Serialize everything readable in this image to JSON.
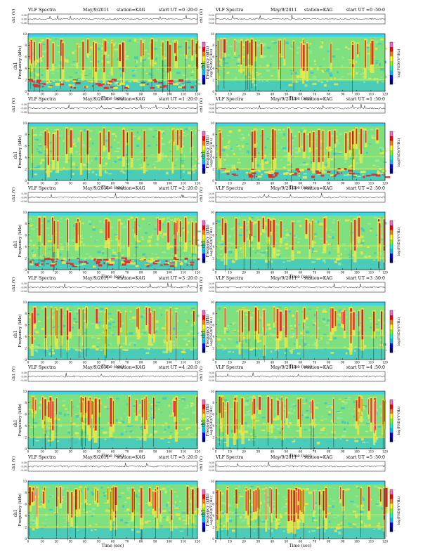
{
  "header": {
    "title": "VLF Spectra",
    "date": "May/9/2011",
    "station": "station=KAG"
  },
  "labels": {
    "x_axis": "Time (sec)",
    "y_axis_line1": "ch1",
    "y_axis_line2": "Frequency (kHz)",
    "amp_axis": "ch1 (V)",
    "colorbar": "log(PSD)(V²/Hz)"
  },
  "colors": {
    "background_spectrum": "#7fe07f",
    "low_band": "#3dc7c7",
    "high_band": "#e8e84a",
    "intense": "#e03030",
    "top_band": "#40d8e8"
  },
  "colorbar": {
    "colors": [
      "#000080",
      "#0000ff",
      "#00bfff",
      "#00ffbf",
      "#7fff00",
      "#ffff00",
      "#ff8000",
      "#ff0000",
      "#ff66cc"
    ],
    "ticks": [
      "-",
      "-"
    ]
  },
  "chart_data": [
    {
      "type": "heatmap",
      "start_ut": "start  UT =0 :20:0",
      "xlim": [
        0,
        120
      ],
      "ylim": [
        0,
        10
      ],
      "x_ticks": [
        "0",
        "10",
        "20",
        "30",
        "40",
        "50",
        "60",
        "70",
        "80",
        "90",
        "100",
        "110",
        "120"
      ],
      "y_ticks": [
        "0",
        "2",
        "4",
        "6",
        "8",
        "10"
      ],
      "amp_ticks": [
        "0.30",
        "0.00",
        "-0.30"
      ],
      "low_red_band": true,
      "activity": 0.55
    },
    {
      "type": "heatmap",
      "start_ut": "start  UT =0 :50:0",
      "xlim": [
        0,
        120
      ],
      "ylim": [
        0,
        10
      ],
      "x_ticks": [
        "0",
        "10",
        "20",
        "30",
        "40",
        "50",
        "60",
        "70",
        "80",
        "90",
        "100",
        "110",
        "120"
      ],
      "y_ticks": [
        "0",
        "2",
        "4",
        "6",
        "8",
        "10"
      ],
      "amp_ticks": [
        "0.30",
        "0.00",
        "-0.30"
      ],
      "low_red_band": false,
      "activity": 0.35
    },
    {
      "type": "heatmap",
      "start_ut": "start  UT =1 :20:0",
      "xlim": [
        0,
        120
      ],
      "ylim": [
        0,
        10
      ],
      "x_ticks": [
        "0",
        "10",
        "20",
        "30",
        "40",
        "50",
        "60",
        "70",
        "80",
        "90",
        "100",
        "110",
        "120"
      ],
      "y_ticks": [
        "0",
        "2",
        "4",
        "6",
        "8",
        "10"
      ],
      "amp_ticks": [
        "0.30",
        "0.00",
        "-0.30"
      ],
      "low_red_band": false,
      "activity": 0.3
    },
    {
      "type": "heatmap",
      "start_ut": "start  UT =1 :50:0",
      "xlim": [
        0,
        120
      ],
      "ylim": [
        0,
        10
      ],
      "x_ticks": [
        "0",
        "10",
        "20",
        "30",
        "40",
        "50",
        "60",
        "70",
        "80",
        "90",
        "100",
        "110",
        "120"
      ],
      "y_ticks": [
        "0",
        "2",
        "4",
        "6",
        "8",
        "10"
      ],
      "amp_ticks": [
        "0.30",
        "0.00",
        "-0.30"
      ],
      "low_red_band": true,
      "activity": 0.4
    },
    {
      "type": "heatmap",
      "start_ut": "start  UT =2 :20:0",
      "xlim": [
        0,
        120
      ],
      "ylim": [
        0,
        10
      ],
      "x_ticks": [
        "0",
        "10",
        "20",
        "30",
        "40",
        "50",
        "60",
        "70",
        "80",
        "90",
        "100",
        "110",
        "120"
      ],
      "y_ticks": [
        "0",
        "2",
        "4",
        "6",
        "8",
        "10"
      ],
      "amp_ticks": [
        "0.30",
        "0.00",
        "-0.30"
      ],
      "low_red_band": true,
      "activity": 0.45
    },
    {
      "type": "heatmap",
      "start_ut": "start  UT =2 :50:0",
      "xlim": [
        0,
        120
      ],
      "ylim": [
        0,
        10
      ],
      "x_ticks": [
        "0",
        "10",
        "20",
        "30",
        "40",
        "50",
        "60",
        "70",
        "80",
        "90",
        "100",
        "110",
        "120"
      ],
      "y_ticks": [
        "0",
        "2",
        "4",
        "6",
        "8",
        "10"
      ],
      "amp_ticks": [
        "0.30",
        "0.00",
        "-0.30"
      ],
      "low_red_band": false,
      "activity": 0.45
    },
    {
      "type": "heatmap",
      "start_ut": "start  UT =3 :20:0",
      "xlim": [
        0,
        120
      ],
      "ylim": [
        0,
        10
      ],
      "x_ticks": [
        "0",
        "10",
        "20",
        "30",
        "40",
        "50",
        "60",
        "70",
        "80",
        "90",
        "100",
        "110",
        "120"
      ],
      "y_ticks": [
        "0",
        "2",
        "4",
        "6",
        "8",
        "10"
      ],
      "amp_ticks": [
        "0.30",
        "0.00",
        "-0.30"
      ],
      "low_red_band": false,
      "activity": 0.55
    },
    {
      "type": "heatmap",
      "start_ut": "start  UT =3 :50:0",
      "xlim": [
        0,
        120
      ],
      "ylim": [
        0,
        10
      ],
      "x_ticks": [
        "0",
        "10",
        "20",
        "30",
        "40",
        "50",
        "60",
        "70",
        "80",
        "90",
        "100",
        "110",
        "120"
      ],
      "y_ticks": [
        "0",
        "2",
        "4",
        "6",
        "8",
        "10"
      ],
      "amp_ticks": [
        "0.30",
        "0.00",
        "-0.30"
      ],
      "low_red_band": false,
      "activity": 0.55
    },
    {
      "type": "heatmap",
      "start_ut": "start  UT =4 :20:0",
      "xlim": [
        0,
        120
      ],
      "ylim": [
        0,
        10
      ],
      "x_ticks": [
        "0",
        "10",
        "20",
        "30",
        "40",
        "50",
        "60",
        "70",
        "80",
        "90",
        "100",
        "110",
        "120"
      ],
      "y_ticks": [
        "0",
        "2",
        "4",
        "6",
        "8",
        "10"
      ],
      "amp_ticks": [
        "0.30",
        "0.00",
        "-0.30"
      ],
      "low_red_band": false,
      "activity": 0.65
    },
    {
      "type": "heatmap",
      "start_ut": "start  UT =4 :50:0",
      "xlim": [
        0,
        120
      ],
      "ylim": [
        0,
        10
      ],
      "x_ticks": [
        "0",
        "10",
        "20",
        "30",
        "40",
        "50",
        "60",
        "70",
        "80",
        "90",
        "100",
        "110",
        "120"
      ],
      "y_ticks": [
        "0",
        "2",
        "4",
        "6",
        "8",
        "10"
      ],
      "amp_ticks": [
        "0.30",
        "0.00",
        "-0.30"
      ],
      "low_red_band": false,
      "activity": 0.7
    },
    {
      "type": "heatmap",
      "start_ut": "start  UT =5 :20:0",
      "xlim": [
        0,
        120
      ],
      "ylim": [
        0,
        10
      ],
      "x_ticks": [
        "0",
        "10",
        "20",
        "30",
        "40",
        "50",
        "60",
        "70",
        "80",
        "90",
        "100",
        "110",
        "120"
      ],
      "y_ticks": [
        "0",
        "2",
        "4",
        "6",
        "8",
        "10"
      ],
      "amp_ticks": [
        "0.30",
        "0.00",
        "-0.30"
      ],
      "low_red_band": false,
      "activity": 0.8
    },
    {
      "type": "heatmap",
      "start_ut": "start  UT =5 :50:0",
      "xlim": [
        0,
        120
      ],
      "ylim": [
        0,
        10
      ],
      "x_ticks": [
        "0",
        "10",
        "20",
        "30",
        "40",
        "50",
        "60",
        "70",
        "80",
        "90",
        "100",
        "110",
        "120"
      ],
      "y_ticks": [
        "0",
        "2",
        "4",
        "6",
        "8",
        "10"
      ],
      "amp_ticks": [
        "0.30",
        "0.00",
        "-0.30"
      ],
      "low_red_band": false,
      "activity": 0.85
    }
  ]
}
